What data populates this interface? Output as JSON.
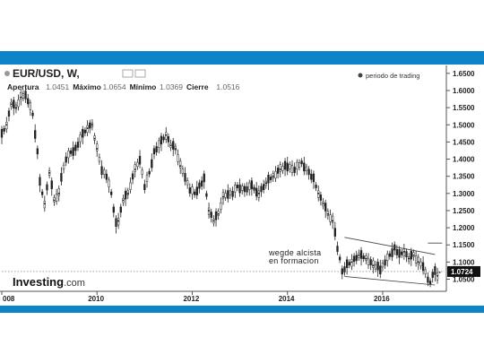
{
  "header": {
    "symbol": "EUR/USD, W,",
    "stats": [
      {
        "label": "Apertura",
        "value": "1.0451"
      },
      {
        "label": "Máximo",
        "value": "1.0654"
      },
      {
        "label": "Mínimo",
        "value": "1.0369"
      },
      {
        "label": "Cierre",
        "value": "1.0516"
      }
    ]
  },
  "legend": "periodo de trading",
  "watermark": {
    "brand": "Investing",
    "suffix": ".com"
  },
  "colors": {
    "accent_band": "#0d84c7",
    "candles": "#222222",
    "price_label_bg": "#111111",
    "wedge_lines": "#444444"
  },
  "chart_data": {
    "type": "line",
    "title": "EUR/USD, W,",
    "x_ticks": [
      "008",
      "2010",
      "2012",
      "2014",
      "2016"
    ],
    "xlim": [
      2008.0,
      2017.3
    ],
    "ylim": [
      1.02,
      1.66
    ],
    "y_ticks": [
      "1.6500",
      "1.6000",
      "1.5500",
      "1.5000",
      "1.4500",
      "1.4000",
      "1.3500",
      "1.3000",
      "1.2500",
      "1.2000",
      "1.1500",
      "1.1000",
      "1.0500"
    ],
    "current_price": "1.0724",
    "annotation": [
      "wegde alcista",
      "en formacion"
    ],
    "series": [
      {
        "x": [
          2008.0,
          2008.1,
          2008.2,
          2008.3,
          2008.4,
          2008.5,
          2008.55,
          2008.65,
          2008.75,
          2008.8,
          2008.9,
          2009.0,
          2009.1,
          2009.2,
          2009.25,
          2009.35,
          2009.45,
          2009.55,
          2009.7,
          2009.8,
          2009.9,
          2009.95,
          2010.0,
          2010.1,
          2010.2,
          2010.3,
          2010.35,
          2010.4,
          2010.45,
          2010.55,
          2010.65,
          2010.8,
          2010.9,
          2011.0,
          2011.1,
          2011.2,
          2011.35,
          2011.45,
          2011.55,
          2011.65,
          2011.75,
          2011.85,
          2011.95,
          2012.05,
          2012.15,
          2012.25,
          2012.35,
          2012.45,
          2012.55,
          2012.65,
          2012.75,
          2012.85,
          2012.95,
          2013.1,
          2013.25,
          2013.4,
          2013.55,
          2013.7,
          2013.85,
          2014.0,
          2014.15,
          2014.3,
          2014.45,
          2014.55,
          2014.65,
          2014.75,
          2014.85,
          2014.95,
          2015.0,
          2015.05,
          2015.1,
          2015.15,
          2015.25,
          2015.35,
          2015.5,
          2015.65,
          2015.8,
          2015.95,
          2016.05,
          2016.15,
          2016.25,
          2016.35,
          2016.45,
          2016.55,
          2016.65,
          2016.75,
          2016.85,
          2016.95,
          2017.0,
          2017.05,
          2017.1,
          2017.15,
          2017.2
        ],
        "y": [
          1.47,
          1.5,
          1.56,
          1.55,
          1.58,
          1.59,
          1.57,
          1.53,
          1.42,
          1.33,
          1.27,
          1.36,
          1.28,
          1.3,
          1.35,
          1.4,
          1.42,
          1.43,
          1.47,
          1.49,
          1.5,
          1.46,
          1.43,
          1.37,
          1.35,
          1.3,
          1.25,
          1.21,
          1.22,
          1.28,
          1.3,
          1.37,
          1.4,
          1.32,
          1.36,
          1.42,
          1.45,
          1.47,
          1.44,
          1.43,
          1.38,
          1.35,
          1.31,
          1.3,
          1.32,
          1.34,
          1.25,
          1.22,
          1.24,
          1.29,
          1.3,
          1.3,
          1.32,
          1.31,
          1.32,
          1.3,
          1.33,
          1.35,
          1.37,
          1.38,
          1.37,
          1.39,
          1.36,
          1.34,
          1.3,
          1.27,
          1.24,
          1.22,
          1.19,
          1.14,
          1.11,
          1.07,
          1.09,
          1.1,
          1.12,
          1.11,
          1.09,
          1.08,
          1.1,
          1.12,
          1.14,
          1.12,
          1.13,
          1.11,
          1.12,
          1.1,
          1.09,
          1.05,
          1.04,
          1.06,
          1.07,
          1.06,
          1.07
        ]
      }
    ]
  }
}
